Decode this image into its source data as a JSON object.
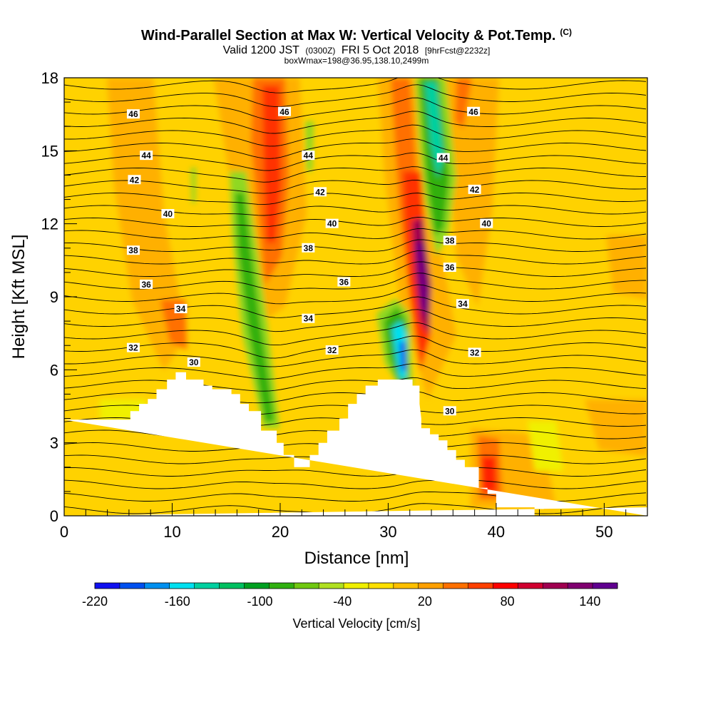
{
  "chart_data": {
    "type": "heatmap",
    "title": "Wind-Parallel Section at Max W: Vertical Velocity & Pot.Temp.",
    "title_mark": "(C)",
    "subtitle_parts": [
      "Valid 1200 JST",
      "(0300Z)",
      "FRI 5 Oct 2018",
      "[9hrFcst@2232z]"
    ],
    "subtitle2": "boxWmax=198@36.95,138.10,2499m",
    "xlabel": "Distance [nm]",
    "ylabel": "Height [Kft MSL]",
    "xlim": [
      0,
      54
    ],
    "ylim": [
      0,
      18
    ],
    "x_ticks": [
      "0",
      "10",
      "20",
      "30",
      "40",
      "50"
    ],
    "y_ticks": [
      "0",
      "3",
      "6",
      "9",
      "12",
      "15",
      "18"
    ],
    "colorbar": {
      "title": "Vertical Velocity [cm/s]",
      "min": -220,
      "max": 160,
      "step": 20,
      "labels": [
        "-220",
        "-160",
        "-100",
        "-40",
        "20",
        "80",
        "140"
      ],
      "colors": [
        "#1010f0",
        "#0050f0",
        "#0090f0",
        "#00e0f0",
        "#00d0a0",
        "#00c060",
        "#00a020",
        "#30b010",
        "#70c810",
        "#b0e020",
        "#f0f000",
        "#ffe000",
        "#ffc000",
        "#ffa000",
        "#ff7000",
        "#ff4000",
        "#ff0000",
        "#d00030",
        "#a00050",
        "#800070",
        "#600090"
      ]
    },
    "contour_labels": [
      {
        "text": "46",
        "x": 6.4,
        "y": 16.5
      },
      {
        "text": "46",
        "x": 20.4,
        "y": 16.6
      },
      {
        "text": "46",
        "x": 37.9,
        "y": 16.6
      },
      {
        "text": "44",
        "x": 7.6,
        "y": 14.8
      },
      {
        "text": "44",
        "x": 22.6,
        "y": 14.8
      },
      {
        "text": "44",
        "x": 35.1,
        "y": 14.7
      },
      {
        "text": "42",
        "x": 6.5,
        "y": 13.8
      },
      {
        "text": "42",
        "x": 23.7,
        "y": 13.3
      },
      {
        "text": "42",
        "x": 38.0,
        "y": 13.4
      },
      {
        "text": "40",
        "x": 9.6,
        "y": 12.4
      },
      {
        "text": "40",
        "x": 24.8,
        "y": 12.0
      },
      {
        "text": "40",
        "x": 39.1,
        "y": 12.0
      },
      {
        "text": "38",
        "x": 6.4,
        "y": 10.9
      },
      {
        "text": "38",
        "x": 22.6,
        "y": 11.0
      },
      {
        "text": "38",
        "x": 35.7,
        "y": 11.3
      },
      {
        "text": "36",
        "x": 7.6,
        "y": 9.5
      },
      {
        "text": "36",
        "x": 25.9,
        "y": 9.6
      },
      {
        "text": "36",
        "x": 35.7,
        "y": 10.2
      },
      {
        "text": "34",
        "x": 10.8,
        "y": 8.5
      },
      {
        "text": "34",
        "x": 22.6,
        "y": 8.1
      },
      {
        "text": "34",
        "x": 36.9,
        "y": 8.7
      },
      {
        "text": "32",
        "x": 6.4,
        "y": 6.9
      },
      {
        "text": "32",
        "x": 24.8,
        "y": 6.8
      },
      {
        "text": "32",
        "x": 38.0,
        "y": 6.7
      },
      {
        "text": "30",
        "x": 12.0,
        "y": 6.3
      },
      {
        "text": "30",
        "x": 35.7,
        "y": 4.3
      }
    ]
  }
}
